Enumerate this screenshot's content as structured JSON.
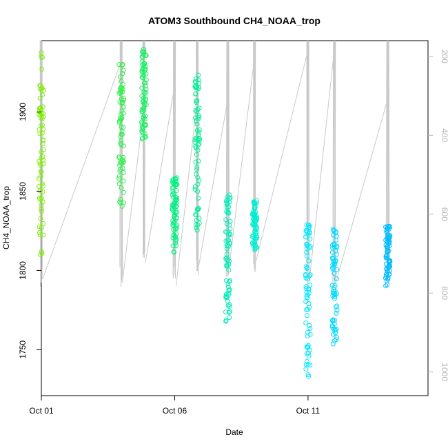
{
  "chart_data": {
    "type": "scatter",
    "title": "ATOM3 Southbound CH4_NOAA_trop",
    "xlabel": "Date",
    "ylabel": "CH4_NOAA_trop",
    "xlim": [
      "2017-10-01 00:00",
      "2017-10-15 12:00"
    ],
    "ylim": [
      1721,
      1945
    ],
    "y2lim": [
      1060,
      160
    ],
    "x_ticks": [
      {
        "label": "Oct 01",
        "value": "2017-10-01 00:00"
      },
      {
        "label": "Oct 06",
        "value": "2017-10-06 00:00"
      },
      {
        "label": "Oct 11",
        "value": "2017-10-11 00:00"
      }
    ],
    "y_ticks": [
      1750,
      1800,
      1850,
      1900
    ],
    "y2_ticks": [
      200,
      400,
      600,
      800,
      1000
    ],
    "grid": false,
    "point_color_scale": "by date: lime green (Oct 01) to sky blue (Oct 15)",
    "colors": {
      "early": "#7cf000",
      "mid": "#00f07a",
      "late": "#00ecff",
      "last": "#00a6ff",
      "profile_line": "#c8c8c8",
      "right_axis": "#b5b5b5"
    },
    "flights": [
      {
        "date": "2017-10-01",
        "ch4_range": [
          1808,
          1938
        ],
        "pressure_range": [
          160,
          790
        ]
      },
      {
        "date": "2017-10-04",
        "ch4_range": [
          1837,
          1932
        ],
        "pressure_range": [
          160,
          790
        ]
      },
      {
        "date": "2017-10-04",
        "ch4_range": [
          1882,
          1940
        ],
        "pressure_range": [
          160,
          750
        ]
      },
      {
        "date": "2017-10-06",
        "ch4_range": [
          1811,
          1859
        ],
        "pressure_range": [
          160,
          790
        ]
      },
      {
        "date": "2017-10-06",
        "ch4_range": [
          1825,
          1926
        ],
        "pressure_range": [
          160,
          760
        ]
      },
      {
        "date": "2017-10-08",
        "ch4_range": [
          1766,
          1848
        ],
        "pressure_range": [
          160,
          760
        ]
      },
      {
        "date": "2017-10-09",
        "ch4_range": [
          1813,
          1845
        ],
        "pressure_range": [
          160,
          750
        ]
      },
      {
        "date": "2017-10-11",
        "ch4_range": [
          1730,
          1832
        ],
        "pressure_range": [
          160,
          790
        ]
      },
      {
        "date": "2017-10-12",
        "ch4_range": [
          1752,
          1826
        ],
        "pressure_range": [
          160,
          780
        ]
      },
      {
        "date": "2017-10-14",
        "ch4_range": [
          1790,
          1828
        ],
        "pressure_range": [
          160,
          760
        ]
      }
    ]
  }
}
